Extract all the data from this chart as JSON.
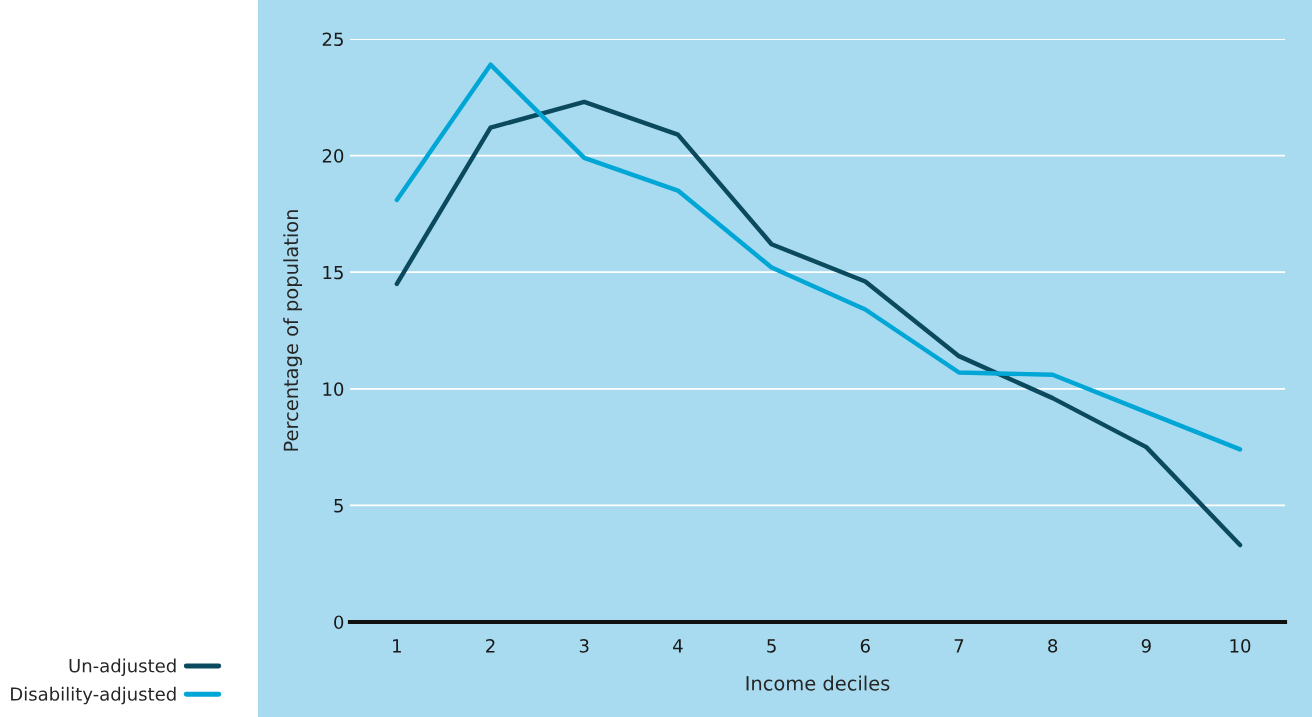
{
  "chart_data": {
    "type": "line",
    "xlabel": "Income deciles",
    "ylabel": "Percentage of population",
    "categories": [
      "1",
      "2",
      "3",
      "4",
      "5",
      "6",
      "7",
      "8",
      "9",
      "10"
    ],
    "series": [
      {
        "name": "Un-adjusted",
        "color": "#0b4a5e",
        "values": [
          14.5,
          21.2,
          22.3,
          20.9,
          16.2,
          14.6,
          11.4,
          9.6,
          7.5,
          3.3
        ]
      },
      {
        "name": "Disability-adjusted",
        "color": "#00a6d6",
        "values": [
          18.1,
          23.9,
          19.9,
          18.5,
          15.2,
          13.4,
          10.7,
          10.6,
          9.0,
          7.4
        ]
      }
    ],
    "ylim": [
      0,
      25
    ],
    "yticks": [
      0,
      5,
      10,
      15,
      20,
      25
    ],
    "grid": "y",
    "legend": "bottom left",
    "marker": "none",
    "line_style": "solid"
  }
}
